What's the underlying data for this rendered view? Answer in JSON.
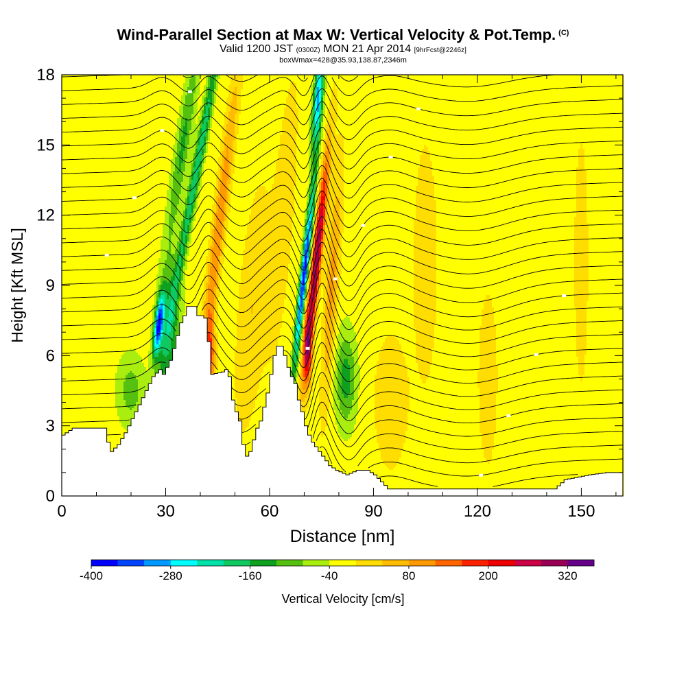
{
  "title": {
    "main": "Wind-Parallel Section at Max W: Vertical Velocity & Pot.Temp.",
    "copyright": "(C)",
    "valid_prefix": "Valid 1200 JST",
    "valid_utc": "(0300Z)",
    "valid_date": "MON 21 Apr 2014",
    "forecast": "[9hrFcst@2246z]",
    "boxinfo": "boxWmax=428@35.93,138.87,2346m"
  },
  "chart_data": {
    "type": "heatmap",
    "xlabel": "Distance [nm]",
    "ylabel": "Height [Kft MSL]",
    "xlim": [
      0,
      162
    ],
    "ylim": [
      0,
      18
    ],
    "x_ticks": [
      0,
      30,
      60,
      90,
      120,
      150
    ],
    "y_ticks": [
      0,
      3,
      6,
      9,
      12,
      15,
      18
    ],
    "x_tick_labels": [
      "0",
      "30",
      "60",
      "90",
      "120",
      "150"
    ],
    "y_tick_labels": [
      "0",
      "3",
      "6",
      "9",
      "12",
      "15",
      "18"
    ],
    "background_velocity": -20,
    "terrain": [
      [
        0,
        2.6
      ],
      [
        3,
        2.9
      ],
      [
        8,
        2.9
      ],
      [
        12,
        2.9
      ],
      [
        13,
        2.3
      ],
      [
        14,
        1.9
      ],
      [
        16,
        2.2
      ],
      [
        18,
        2.7
      ],
      [
        20,
        3.3
      ],
      [
        22,
        3.9
      ],
      [
        24,
        4.5
      ],
      [
        26,
        5.1
      ],
      [
        28,
        5.4
      ],
      [
        29,
        5.2
      ],
      [
        31,
        5.8
      ],
      [
        32,
        6.3
      ],
      [
        34,
        7.4
      ],
      [
        35,
        7.7
      ],
      [
        36,
        8.1
      ],
      [
        38,
        8.1
      ],
      [
        39,
        7.7
      ],
      [
        40,
        7.7
      ],
      [
        41,
        7.6
      ],
      [
        42,
        6.6
      ],
      [
        43,
        5.2
      ],
      [
        46,
        5.3
      ],
      [
        47,
        5.4
      ],
      [
        48,
        5.1
      ],
      [
        49,
        4.1
      ],
      [
        50,
        3.6
      ],
      [
        51,
        3.2
      ],
      [
        52,
        2.2
      ],
      [
        53,
        1.7
      ],
      [
        54,
        1.9
      ],
      [
        55,
        2.4
      ],
      [
        56,
        2.9
      ],
      [
        57,
        3.2
      ],
      [
        58,
        3.8
      ],
      [
        59,
        4.4
      ],
      [
        60,
        5.2
      ],
      [
        61,
        6.0
      ],
      [
        62,
        6.4
      ],
      [
        63,
        6.4
      ],
      [
        64,
        6.0
      ],
      [
        65,
        5.5
      ],
      [
        66,
        5.1
      ],
      [
        67,
        4.8
      ],
      [
        68,
        4.1
      ],
      [
        69,
        3.6
      ],
      [
        70,
        3.0
      ],
      [
        71,
        2.6
      ],
      [
        72,
        2.3
      ],
      [
        73,
        2.1
      ],
      [
        75,
        1.7
      ],
      [
        77,
        1.3
      ],
      [
        79,
        1.1
      ],
      [
        82,
        0.9
      ],
      [
        85,
        1.1
      ],
      [
        88,
        1.1
      ],
      [
        90,
        0.9
      ],
      [
        92,
        0.6
      ],
      [
        94,
        0.3
      ],
      [
        100,
        0.3
      ],
      [
        108,
        0.3
      ],
      [
        115,
        0.3
      ],
      [
        125,
        0.3
      ],
      [
        134,
        0.3
      ],
      [
        142,
        0.3
      ],
      [
        145,
        0.7
      ],
      [
        152,
        0.9
      ],
      [
        157,
        1.0
      ],
      [
        162,
        1.0
      ]
    ],
    "velocity_features": [
      {
        "x": 28,
        "z": 7.3,
        "w": -330,
        "sx": 1.2,
        "sz": 1.3,
        "tilt": 0.7
      },
      {
        "x": 31,
        "z": 7.0,
        "w": -140,
        "sx": 3.0,
        "sz": 3.0,
        "tilt": 0.3
      },
      {
        "x": 20,
        "z": 4.5,
        "w": -80,
        "sx": 4.0,
        "sz": 1.5,
        "tilt": 0.0
      },
      {
        "x": 39,
        "z": 14.0,
        "w": -180,
        "sx": 1.4,
        "sz": 6.0,
        "tilt": 1.2
      },
      {
        "x": 35,
        "z": 15.0,
        "w": -110,
        "sx": 2.0,
        "sz": 4.0,
        "tilt": 1.0
      },
      {
        "x": 45,
        "z": 11.0,
        "w": 140,
        "sx": 1.8,
        "sz": 7.0,
        "tilt": 0.8
      },
      {
        "x": 43,
        "z": 6.0,
        "w": 170,
        "sx": 1.3,
        "sz": 1.5,
        "tilt": 0.0
      },
      {
        "x": 70,
        "z": 9.5,
        "w": -360,
        "sx": 1.0,
        "sz": 4.0,
        "tilt": 0.7
      },
      {
        "x": 74,
        "z": 17.0,
        "w": -280,
        "sx": 1.3,
        "sz": 2.2,
        "tilt": 0.5
      },
      {
        "x": 73.5,
        "z": 10.0,
        "w": 340,
        "sx": 1.3,
        "sz": 4.5,
        "tilt": 0.7
      },
      {
        "x": 71,
        "z": 6.2,
        "w": 190,
        "sx": 1.2,
        "sz": 1.5,
        "tilt": 0.0
      },
      {
        "x": 78,
        "z": 9.0,
        "w": 110,
        "sx": 1.8,
        "sz": 5.0,
        "tilt": 0.4
      },
      {
        "x": 82,
        "z": 5.0,
        "w": -120,
        "sx": 3.0,
        "sz": 2.0,
        "tilt": 0.0
      },
      {
        "x": 55,
        "z": 8.0,
        "w": 60,
        "sx": 4.0,
        "sz": 5.0,
        "tilt": 0.5
      },
      {
        "x": 64,
        "z": 12.0,
        "w": 50,
        "sx": 3.0,
        "sz": 6.0,
        "tilt": 0.5
      },
      {
        "x": 95,
        "z": 4.0,
        "w": 50,
        "sx": 5.0,
        "sz": 3.0,
        "tilt": 0.0
      },
      {
        "x": 105,
        "z": 10.0,
        "w": 40,
        "sx": 4.0,
        "sz": 6.0,
        "tilt": 0.0
      },
      {
        "x": 123,
        "z": 5.0,
        "w": 45,
        "sx": 3.0,
        "sz": 4.0,
        "tilt": 0.0
      },
      {
        "x": 150,
        "z": 10.0,
        "w": 30,
        "sx": 3.0,
        "sz": 8.0,
        "tilt": 0.0
      }
    ],
    "waves": [
      {
        "x": 29,
        "amp": 0.8,
        "sx": 5
      },
      {
        "x": 37,
        "amp": -0.6,
        "sx": 4
      },
      {
        "x": 42,
        "amp": 0.9,
        "sx": 3.5
      },
      {
        "x": 52,
        "amp": -0.9,
        "sx": 5
      },
      {
        "x": 64,
        "amp": 0.5,
        "sx": 4
      },
      {
        "x": 70,
        "amp": -1.2,
        "sx": 3
      },
      {
        "x": 75,
        "amp": 1.6,
        "sx": 3
      },
      {
        "x": 83,
        "amp": -1.2,
        "sx": 4
      },
      {
        "x": 95,
        "amp": 0.4,
        "sx": 7
      },
      {
        "x": 118,
        "amp": -0.8,
        "sx": 15
      }
    ],
    "contour_count": 34,
    "colorbar": {
      "label": "Vertical Velocity [cm/s]",
      "ticks": [
        -400,
        -280,
        -160,
        -40,
        80,
        200,
        320
      ],
      "tick_labels": [
        "-400",
        "-280",
        "-160",
        "-40",
        "80",
        "200",
        "320"
      ],
      "bins": [
        -400,
        -360,
        -320,
        -280,
        -240,
        -200,
        -160,
        -120,
        -80,
        -40,
        0,
        40,
        80,
        120,
        160,
        200,
        240,
        280,
        320,
        360
      ],
      "colors": [
        "#0000ff",
        "#0044ff",
        "#0099ff",
        "#00ffff",
        "#00e1a8",
        "#10c860",
        "#10a020",
        "#55c010",
        "#aaee10",
        "#ffff00",
        "#ffdd00",
        "#ffbb00",
        "#ff9900",
        "#ff6600",
        "#ff2200",
        "#ee0000",
        "#cc0044",
        "#990055",
        "#660088"
      ]
    }
  }
}
